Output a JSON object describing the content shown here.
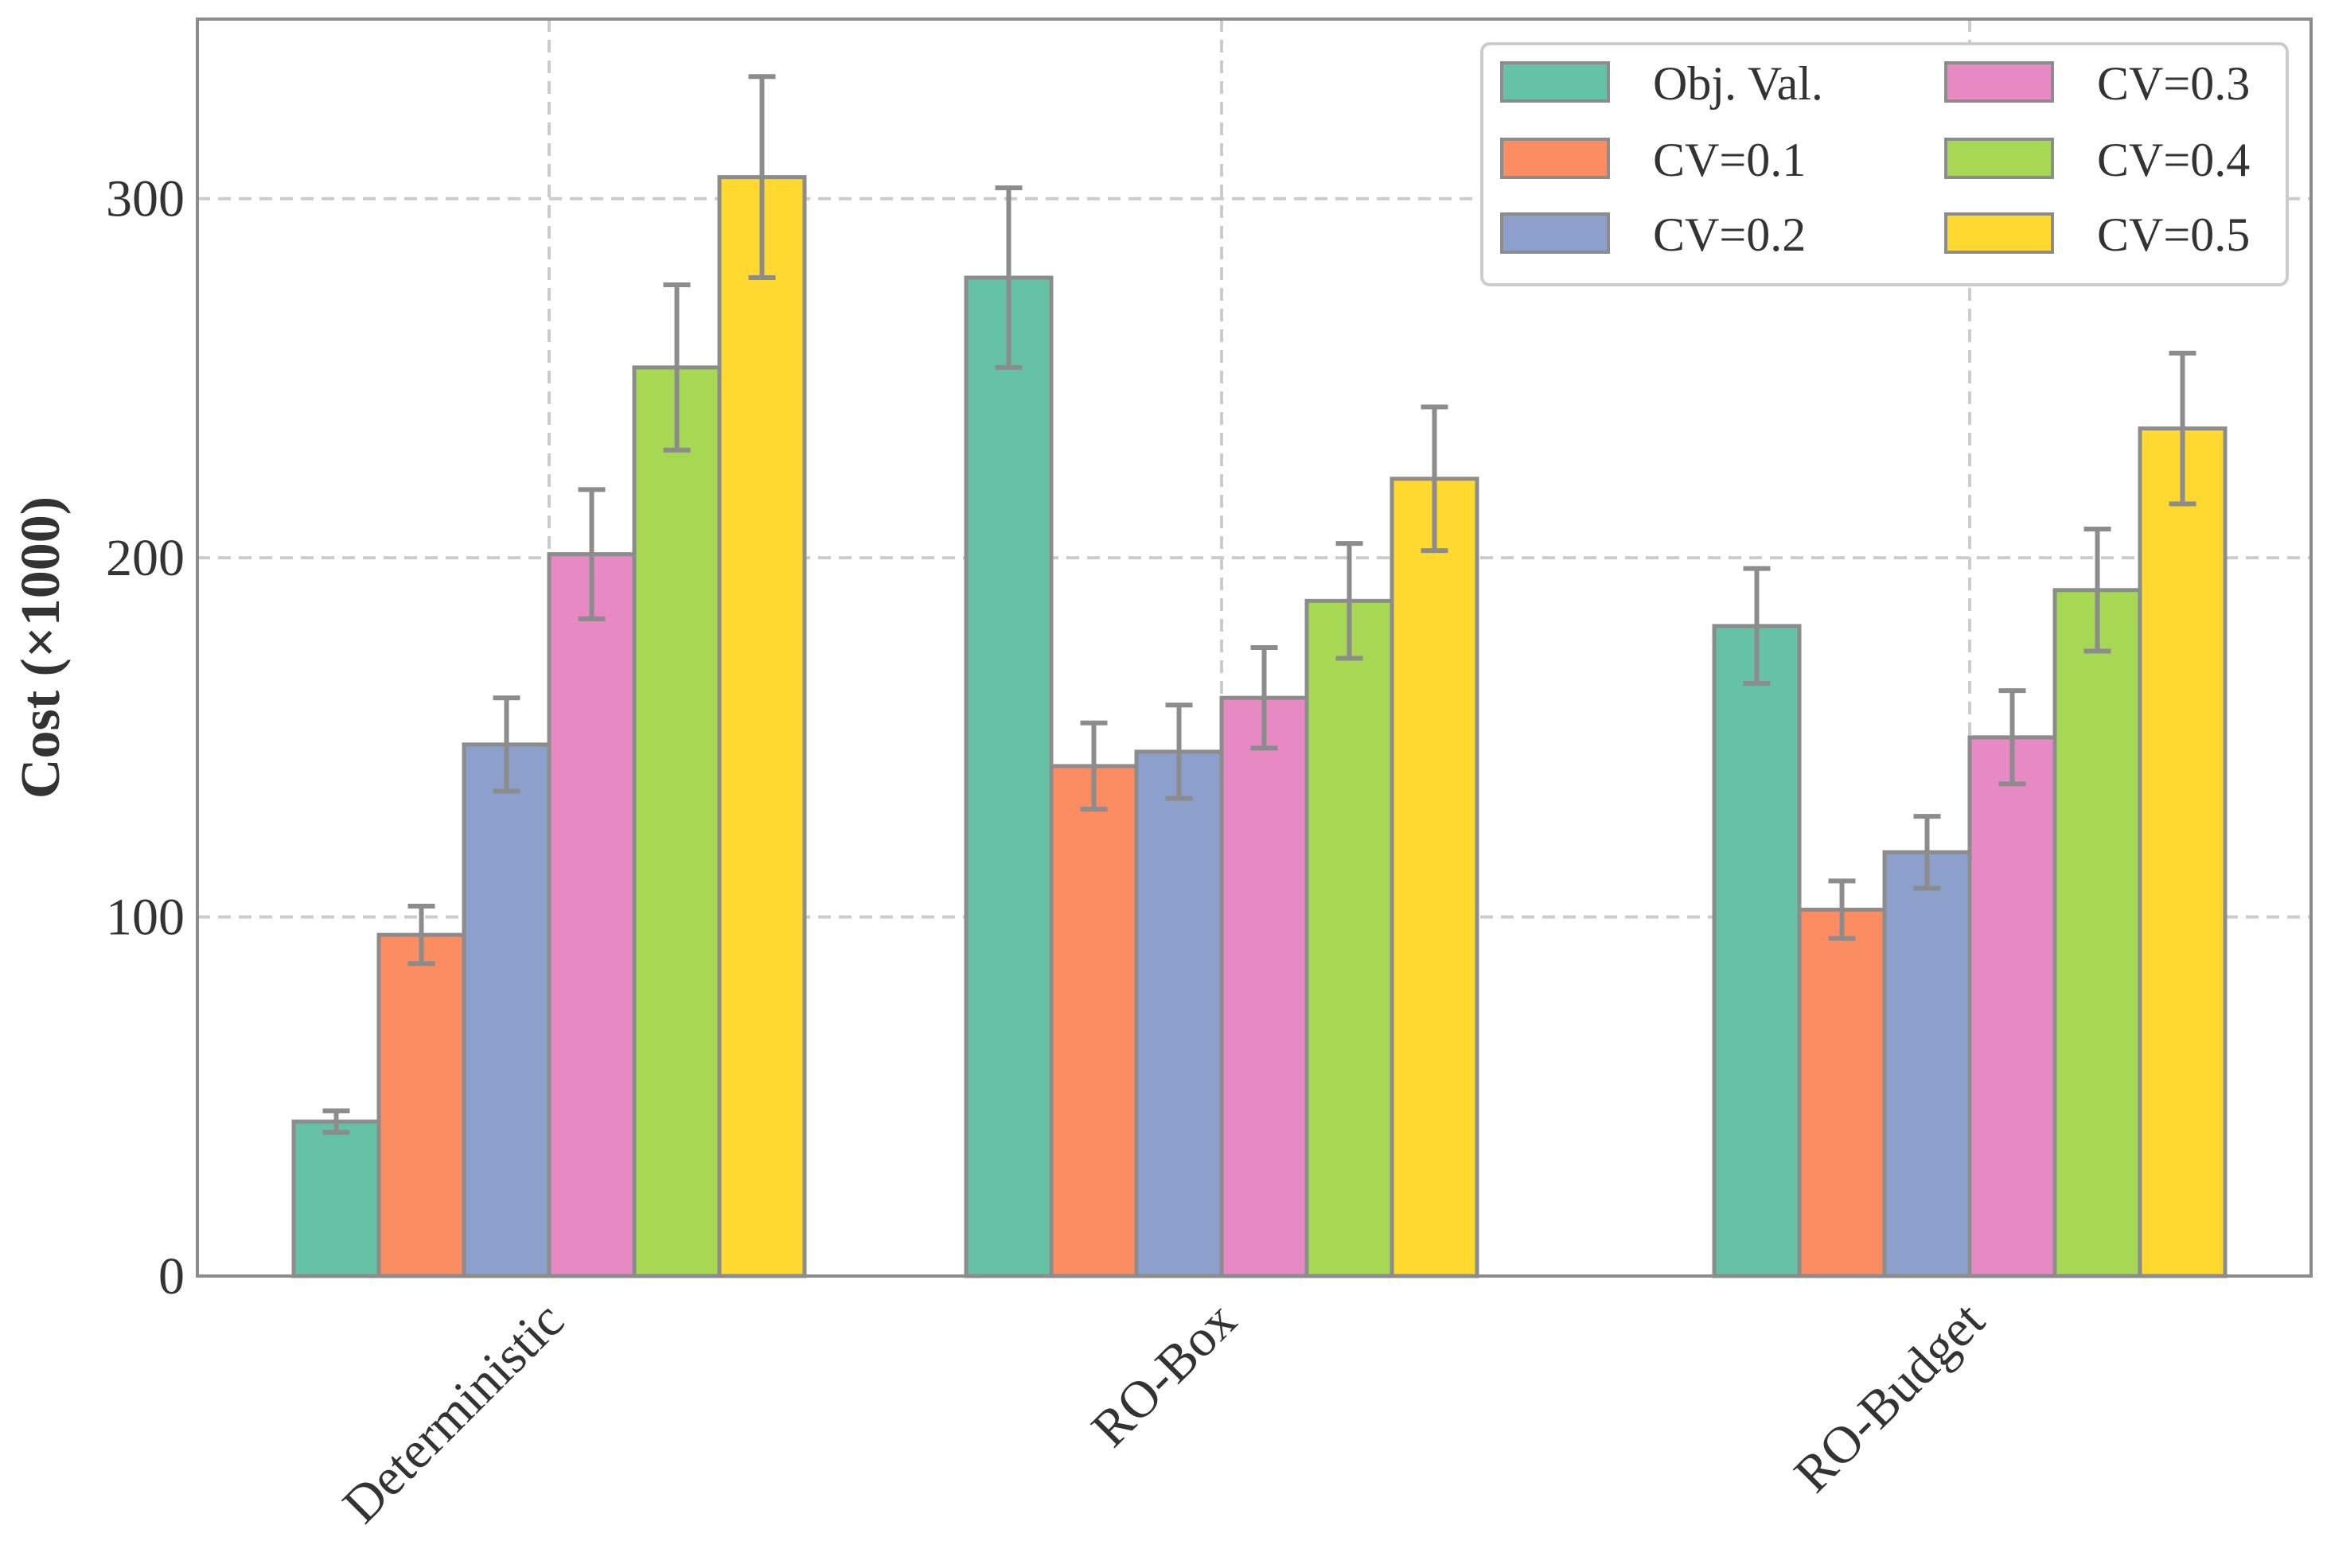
{
  "chart_data": {
    "type": "bar",
    "title": "",
    "xlabel": "",
    "ylabel": "Cost (×1000)",
    "ylim": [
      0,
      350
    ],
    "yticks": [
      "0",
      "100",
      "200",
      "300"
    ],
    "grid": true,
    "legend_position": "top-right",
    "categories": [
      "Deterministic",
      "RO-Box",
      "RO-Budget"
    ],
    "series": [
      {
        "name": "Obj. Val.",
        "color": "#66c2a5",
        "values": [
          43,
          278,
          181
        ],
        "errors": [
          3,
          25,
          16
        ]
      },
      {
        "name": "CV=0.1",
        "color": "#fc8d62",
        "values": [
          95,
          142,
          102
        ],
        "errors": [
          8,
          12,
          8
        ]
      },
      {
        "name": "CV=0.2",
        "color": "#8da0cb",
        "values": [
          148,
          146,
          118
        ],
        "errors": [
          13,
          13,
          10
        ]
      },
      {
        "name": "CV=0.3",
        "color": "#e78ac3",
        "values": [
          201,
          161,
          150
        ],
        "errors": [
          18,
          14,
          13
        ]
      },
      {
        "name": "CV=0.4",
        "color": "#a6d854",
        "values": [
          253,
          188,
          191
        ],
        "errors": [
          23,
          16,
          17
        ]
      },
      {
        "name": "CV=0.5",
        "color": "#ffd92f",
        "values": [
          306,
          222,
          236
        ],
        "errors": [
          28,
          20,
          21
        ]
      }
    ]
  }
}
